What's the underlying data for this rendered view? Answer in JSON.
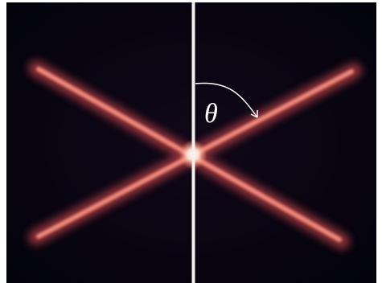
{
  "annotation": {
    "label": "θ"
  }
}
